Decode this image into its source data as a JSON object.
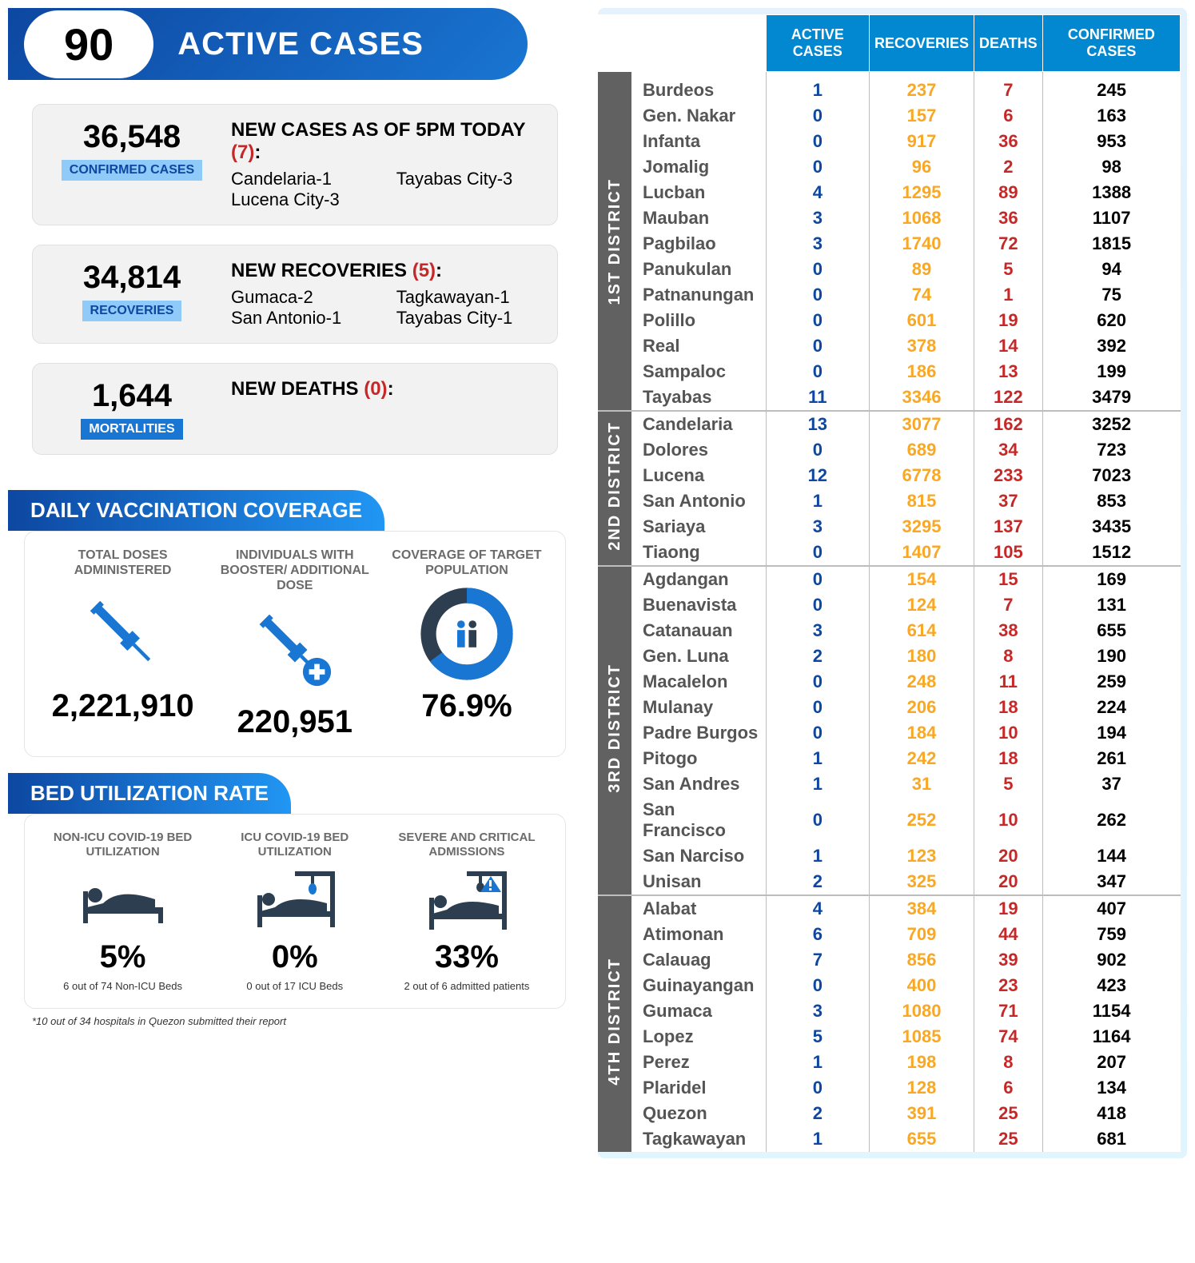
{
  "header": {
    "active_number": "90",
    "active_label": "ACTIVE CASES"
  },
  "confirmed": {
    "number": "36,548",
    "badge": "CONFIRMED CASES",
    "title_prefix": "NEW CASES AS OF 5PM TODAY ",
    "title_count": "(7)",
    "title_suffix": ":",
    "items": [
      "Candelaria-1",
      "Lucena City-3",
      "Tayabas City-3"
    ]
  },
  "recoveries": {
    "number": "34,814",
    "badge": "RECOVERIES",
    "title_prefix": "NEW RECOVERIES ",
    "title_count": "(5)",
    "title_suffix": ":",
    "items": [
      "Gumaca-2",
      "San Antonio-1",
      "Tagkawayan-1",
      "Tayabas City-1"
    ]
  },
  "mortalities": {
    "number": "1,644",
    "badge": "MORTALITIES",
    "title_prefix": "NEW DEATHS ",
    "title_count": "(0)",
    "title_suffix": ":"
  },
  "vax_section_title": "DAILY VACCINATION COVERAGE",
  "vax": [
    {
      "label": "TOTAL DOSES ADMINISTERED",
      "value": "2,221,910"
    },
    {
      "label": "INDIVIDUALS WITH BOOSTER/ ADDITIONAL DOSE",
      "value": "220,951"
    },
    {
      "label": "COVERAGE OF TARGET POPULATION",
      "value": "76.9%"
    }
  ],
  "bed_section_title": "BED UTILIZATION RATE",
  "bed": [
    {
      "label": "NON-ICU COVID-19 BED UTILIZATION",
      "value": "5%",
      "sub": "6 out of 74 Non-ICU Beds"
    },
    {
      "label": "ICU COVID-19 BED UTILIZATION",
      "value": "0%",
      "sub": "0 out of 17 ICU Beds"
    },
    {
      "label": "SEVERE AND CRITICAL ADMISSIONS",
      "value": "33%",
      "sub": "2 out of 6 admitted patients"
    }
  ],
  "bed_footnote": "*10 out of 34 hospitals in Quezon submitted their report",
  "table_headers": [
    "",
    "ACTIVE CASES",
    "RECOVERIES",
    "DEATHS",
    "CONFIRMED CASES"
  ],
  "districts": [
    {
      "name": "1ST DISTRICT",
      "rows": [
        [
          "Burdeos",
          "1",
          "237",
          "7",
          "245"
        ],
        [
          "Gen. Nakar",
          "0",
          "157",
          "6",
          "163"
        ],
        [
          "Infanta",
          "0",
          "917",
          "36",
          "953"
        ],
        [
          "Jomalig",
          "0",
          "96",
          "2",
          "98"
        ],
        [
          "Lucban",
          "4",
          "1295",
          "89",
          "1388"
        ],
        [
          "Mauban",
          "3",
          "1068",
          "36",
          "1107"
        ],
        [
          "Pagbilao",
          "3",
          "1740",
          "72",
          "1815"
        ],
        [
          "Panukulan",
          "0",
          "89",
          "5",
          "94"
        ],
        [
          "Patnanungan",
          "0",
          "74",
          "1",
          "75"
        ],
        [
          "Polillo",
          "0",
          "601",
          "19",
          "620"
        ],
        [
          "Real",
          "0",
          "378",
          "14",
          "392"
        ],
        [
          "Sampaloc",
          "0",
          "186",
          "13",
          "199"
        ],
        [
          "Tayabas",
          "11",
          "3346",
          "122",
          "3479"
        ]
      ]
    },
    {
      "name": "2ND DISTRICT",
      "rows": [
        [
          "Candelaria",
          "13",
          "3077",
          "162",
          "3252"
        ],
        [
          "Dolores",
          "0",
          "689",
          "34",
          "723"
        ],
        [
          "Lucena",
          "12",
          "6778",
          "233",
          "7023"
        ],
        [
          "San Antonio",
          "1",
          "815",
          "37",
          "853"
        ],
        [
          "Sariaya",
          "3",
          "3295",
          "137",
          "3435"
        ],
        [
          "Tiaong",
          "0",
          "1407",
          "105",
          "1512"
        ]
      ]
    },
    {
      "name": "3RD DISTRICT",
      "rows": [
        [
          "Agdangan",
          "0",
          "154",
          "15",
          "169"
        ],
        [
          "Buenavista",
          "0",
          "124",
          "7",
          "131"
        ],
        [
          "Catanauan",
          "3",
          "614",
          "38",
          "655"
        ],
        [
          "Gen. Luna",
          "2",
          "180",
          "8",
          "190"
        ],
        [
          "Macalelon",
          "0",
          "248",
          "11",
          "259"
        ],
        [
          "Mulanay",
          "0",
          "206",
          "18",
          "224"
        ],
        [
          "Padre Burgos",
          "0",
          "184",
          "10",
          "194"
        ],
        [
          "Pitogo",
          "1",
          "242",
          "18",
          "261"
        ],
        [
          "San Andres",
          "1",
          "31",
          "5",
          "37"
        ],
        [
          "San Francisco",
          "0",
          "252",
          "10",
          "262"
        ],
        [
          "San Narciso",
          "1",
          "123",
          "20",
          "144"
        ],
        [
          "Unisan",
          "2",
          "325",
          "20",
          "347"
        ]
      ]
    },
    {
      "name": "4TH DISTRICT",
      "rows": [
        [
          "Alabat",
          "4",
          "384",
          "19",
          "407"
        ],
        [
          "Atimonan",
          "6",
          "709",
          "44",
          "759"
        ],
        [
          "Calauag",
          "7",
          "856",
          "39",
          "902"
        ],
        [
          "Guinayangan",
          "0",
          "400",
          "23",
          "423"
        ],
        [
          "Gumaca",
          "3",
          "1080",
          "71",
          "1154"
        ],
        [
          "Lopez",
          "5",
          "1085",
          "74",
          "1164"
        ],
        [
          "Perez",
          "1",
          "198",
          "8",
          "207"
        ],
        [
          "Plaridel",
          "0",
          "128",
          "6",
          "134"
        ],
        [
          "Quezon",
          "2",
          "391",
          "25",
          "418"
        ],
        [
          "Tagkawayan",
          "1",
          "655",
          "25",
          "681"
        ]
      ]
    }
  ],
  "colors": {
    "blue_dark": "#0d47a1",
    "blue": "#1976d2",
    "blue_light": "#90caf9",
    "cyan": "#0288d1",
    "gray_dark": "#616161",
    "orange": "#f9a825",
    "red": "#c62828"
  }
}
